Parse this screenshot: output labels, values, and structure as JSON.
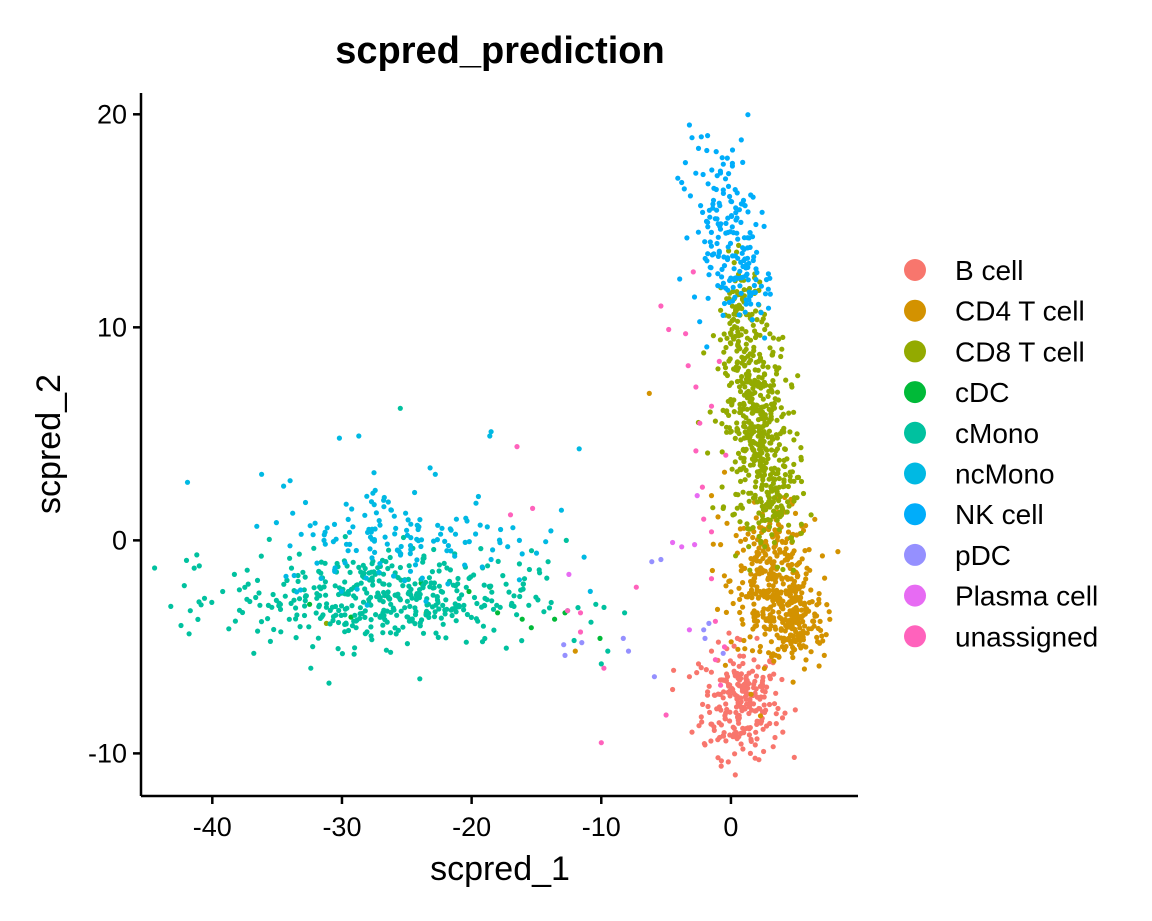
{
  "chart_data": {
    "type": "scatter",
    "title": "scpred_prediction",
    "xlabel": "scpred_1",
    "ylabel": "scpred_2",
    "xlim": [
      -45.5,
      9.8
    ],
    "ylim": [
      -12,
      21
    ],
    "x_ticks": [
      -40,
      -30,
      -20,
      -10,
      0
    ],
    "y_ticks": [
      -10,
      0,
      10,
      20
    ],
    "x_tick_labels": [
      "-40",
      "-30",
      "-20",
      "-10",
      "0"
    ],
    "y_tick_labels": [
      "-10",
      "0",
      "10",
      "20"
    ],
    "grid": false,
    "legend_position": "right",
    "series": [
      {
        "name": "B cell",
        "color": "#F8766D",
        "clusters": [
          {
            "cx": 0.8,
            "cy": -7.6,
            "sx": 1.5,
            "sy": 1.3,
            "n": 230
          }
        ],
        "points": [
          [
            -4.5,
            -7.0
          ],
          [
            -3.2,
            -6.4
          ],
          [
            -2.5,
            -5.8
          ],
          [
            -1.5,
            -5.2
          ],
          [
            -3.0,
            -9.0
          ],
          [
            -1.0,
            -10.2
          ],
          [
            -0.2,
            -10.4
          ],
          [
            1.5,
            -10.0
          ],
          [
            -2.0,
            -9.6
          ],
          [
            3.5,
            -8.6
          ],
          [
            4.0,
            -9.0
          ],
          [
            0.5,
            -4.6
          ]
        ]
      },
      {
        "name": "CD4 T cell",
        "color": "#D39200",
        "clusters": [
          {
            "cx": 3.2,
            "cy": -1.8,
            "sx": 1.6,
            "sy": 1.6,
            "n": 320
          },
          {
            "cx": 5.0,
            "cy": -3.8,
            "sx": 1.1,
            "sy": 1.0,
            "n": 170
          }
        ],
        "points": [
          [
            -6.3,
            6.9
          ],
          [
            -12.0,
            -5.2
          ],
          [
            -1.5,
            2.1
          ],
          [
            -1.0,
            1.1
          ],
          [
            -0.5,
            3.2
          ],
          [
            7.2,
            -5.4
          ],
          [
            6.8,
            -2.5
          ],
          [
            0.5,
            -0.6
          ],
          [
            -0.8,
            -0.2
          ],
          [
            -0.3,
            0.8
          ]
        ]
      },
      {
        "name": "CD8 T cell",
        "color": "#93AA00",
        "clusters": [
          {
            "cx": 2.0,
            "cy": 5.2,
            "sx": 1.2,
            "sy": 2.1,
            "n": 380
          },
          {
            "cx": 0.8,
            "cy": 10.0,
            "sx": 0.9,
            "sy": 1.6,
            "n": 120
          },
          {
            "cx": 3.6,
            "cy": 1.6,
            "sx": 1.1,
            "sy": 1.2,
            "n": 90
          }
        ],
        "points": [
          [
            -1.8,
            4.1
          ],
          [
            -1.2,
            5.6
          ],
          [
            -2.1,
            8.8
          ],
          [
            -0.8,
            10.8
          ],
          [
            4.7,
            7.2
          ],
          [
            5.1,
            5.0
          ],
          [
            5.6,
            2.2
          ],
          [
            -0.6,
            1.5
          ],
          [
            5.4,
            3.9
          ],
          [
            -23.5,
            -3.4
          ],
          [
            -31.2,
            -3.9
          ]
        ]
      },
      {
        "name": "cDC",
        "color": "#00BA38",
        "points": [
          [
            -29.3,
            -3.6
          ],
          [
            -26.4,
            -2.7
          ],
          [
            -23.9,
            -2.0
          ],
          [
            -20.2,
            -2.4
          ],
          [
            -18.6,
            -2.2
          ],
          [
            -18.0,
            -3.4
          ],
          [
            -16.1,
            -3.7
          ],
          [
            -15.4,
            -4.1
          ],
          [
            -12.8,
            -3.4
          ],
          [
            -10.1,
            -4.6
          ],
          [
            -32.5,
            -3.0
          ],
          [
            -13.6,
            -3.7
          ]
        ]
      },
      {
        "name": "cMono",
        "color": "#00C19F",
        "clusters": [
          {
            "cx": -27.0,
            "cy": -2.7,
            "sx": 5.8,
            "sy": 1.1,
            "n": 430
          }
        ],
        "points": [
          [
            -43.2,
            -3.1
          ],
          [
            -41.7,
            -3.3
          ],
          [
            -41.0,
            -1.2
          ],
          [
            -41.4,
            -1.3
          ],
          [
            -39.2,
            -2.4
          ],
          [
            -38.3,
            -1.6
          ],
          [
            -36.8,
            -5.3
          ],
          [
            -32.4,
            -6.0
          ],
          [
            -31.0,
            -6.7
          ],
          [
            -24.0,
            -6.5
          ],
          [
            -25.5,
            6.2
          ],
          [
            -12.7,
            0.0
          ],
          [
            -12.6,
            -3.3
          ],
          [
            -14.1,
            -1.0
          ],
          [
            -10.0,
            -5.8
          ],
          [
            -9.5,
            -5.2
          ],
          [
            -8.2,
            -3.4
          ],
          [
            -12.1,
            -4.7
          ]
        ]
      },
      {
        "name": "ncMono",
        "color": "#00B9E3",
        "clusters": [
          {
            "cx": -25.0,
            "cy": 0.2,
            "sx": 5.0,
            "sy": 1.2,
            "n": 150
          }
        ],
        "points": [
          [
            -36.2,
            3.1
          ],
          [
            -34.0,
            2.8
          ],
          [
            -30.2,
            4.8
          ],
          [
            -28.7,
            4.9
          ],
          [
            -23.2,
            3.4
          ],
          [
            -22.8,
            3.1
          ],
          [
            -18.6,
            4.9
          ],
          [
            -18.5,
            5.1
          ],
          [
            -11.7,
            4.3
          ],
          [
            -15.0,
            -0.6
          ]
        ]
      },
      {
        "name": "NK cell",
        "color": "#00ADFA",
        "clusters": [
          {
            "cx": -0.6,
            "cy": 14.8,
            "sx": 1.2,
            "sy": 1.9,
            "n": 130
          },
          {
            "cx": 1.2,
            "cy": 12.2,
            "sx": 0.9,
            "sy": 1.0,
            "n": 55
          }
        ],
        "points": [
          [
            -3.2,
            19.5
          ],
          [
            -3.0,
            18.9
          ],
          [
            -2.5,
            18.4
          ],
          [
            -1.8,
            19.0
          ],
          [
            0.8,
            18.8
          ],
          [
            -3.8,
            16.8
          ],
          [
            -3.6,
            16.5
          ],
          [
            -4.1,
            17.0
          ],
          [
            -3.4,
            14.2
          ],
          [
            3.0,
            12.3
          ],
          [
            2.9,
            10.9
          ],
          [
            2.4,
            15.4
          ],
          [
            1.4,
            14.2
          ],
          [
            2.6,
            9.5
          ]
        ]
      },
      {
        "name": "pDC",
        "color": "#9590FF",
        "points": [
          [
            -12.9,
            -4.9
          ],
          [
            -12.8,
            -5.4
          ],
          [
            -11.5,
            -4.8
          ],
          [
            -8.3,
            -4.6
          ],
          [
            -7.9,
            -5.2
          ],
          [
            -5.9,
            -6.4
          ],
          [
            -5.4,
            -0.9
          ],
          [
            -6.1,
            -1.0
          ],
          [
            -2.1,
            -4.2
          ],
          [
            -2.0,
            -4.6
          ],
          [
            -1.7,
            -3.9
          ],
          [
            -0.6,
            -5.3
          ]
        ]
      },
      {
        "name": "Plasma cell",
        "color": "#E76BF3",
        "points": [
          [
            -12.5,
            -1.6
          ],
          [
            -4.5,
            -0.1
          ],
          [
            -3.8,
            -0.3
          ],
          [
            -2.8,
            -0.2
          ],
          [
            -2.6,
            2.1
          ],
          [
            -3.2,
            -4.2
          ]
        ]
      },
      {
        "name": "unassigned",
        "color": "#FF62BC",
        "points": [
          [
            -16.5,
            4.4
          ],
          [
            -17.0,
            1.2
          ],
          [
            -15.3,
            1.5
          ],
          [
            -12.6,
            -3.3
          ],
          [
            -11.6,
            -3.4
          ],
          [
            -11.6,
            -4.3
          ],
          [
            -10.0,
            -9.5
          ],
          [
            -9.8,
            -6.0
          ],
          [
            -7.3,
            -2.2
          ],
          [
            -5.4,
            11.0
          ],
          [
            -4.8,
            9.9
          ],
          [
            -3.5,
            9.7
          ],
          [
            -2.9,
            12.6
          ],
          [
            -3.3,
            8.2
          ],
          [
            -2.7,
            7.2
          ],
          [
            -2.4,
            5.5
          ],
          [
            -2.7,
            4.2
          ],
          [
            -2.2,
            2.5
          ],
          [
            -2.1,
            1.0
          ],
          [
            -1.5,
            -1.8
          ],
          [
            -1.2,
            -3.8
          ],
          [
            -0.5,
            -5.0
          ],
          [
            -1.2,
            -5.6
          ],
          [
            -0.8,
            -6.8
          ],
          [
            -5.0,
            -8.2
          ],
          [
            -0.9,
            8.4
          ],
          [
            -1.5,
            6.3
          ],
          [
            -0.4,
            4.0
          ],
          [
            -1.5,
            0.4
          ]
        ]
      }
    ]
  }
}
